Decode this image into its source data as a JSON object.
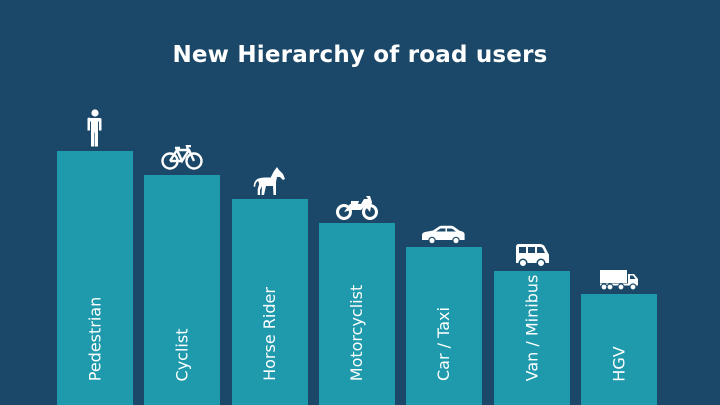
{
  "title": "New Hierarchy of road users",
  "colors": {
    "background": "#1b4868",
    "bar": "#1f9aad",
    "text": "#ffffff"
  },
  "users": [
    {
      "label": "Pedestrian",
      "icon": "pedestrian-icon",
      "rank": 1
    },
    {
      "label": "Cyclist",
      "icon": "bicycle-icon",
      "rank": 2
    },
    {
      "label": "Horse Rider",
      "icon": "horse-icon",
      "rank": 3
    },
    {
      "label": "Motorcyclist",
      "icon": "motorcycle-icon",
      "rank": 4
    },
    {
      "label": "Car / Taxi",
      "icon": "car-icon",
      "rank": 5
    },
    {
      "label": "Van / Minibus",
      "icon": "van-icon",
      "rank": 6
    },
    {
      "label": "HGV",
      "icon": "lorry-icon",
      "rank": 7
    }
  ]
}
